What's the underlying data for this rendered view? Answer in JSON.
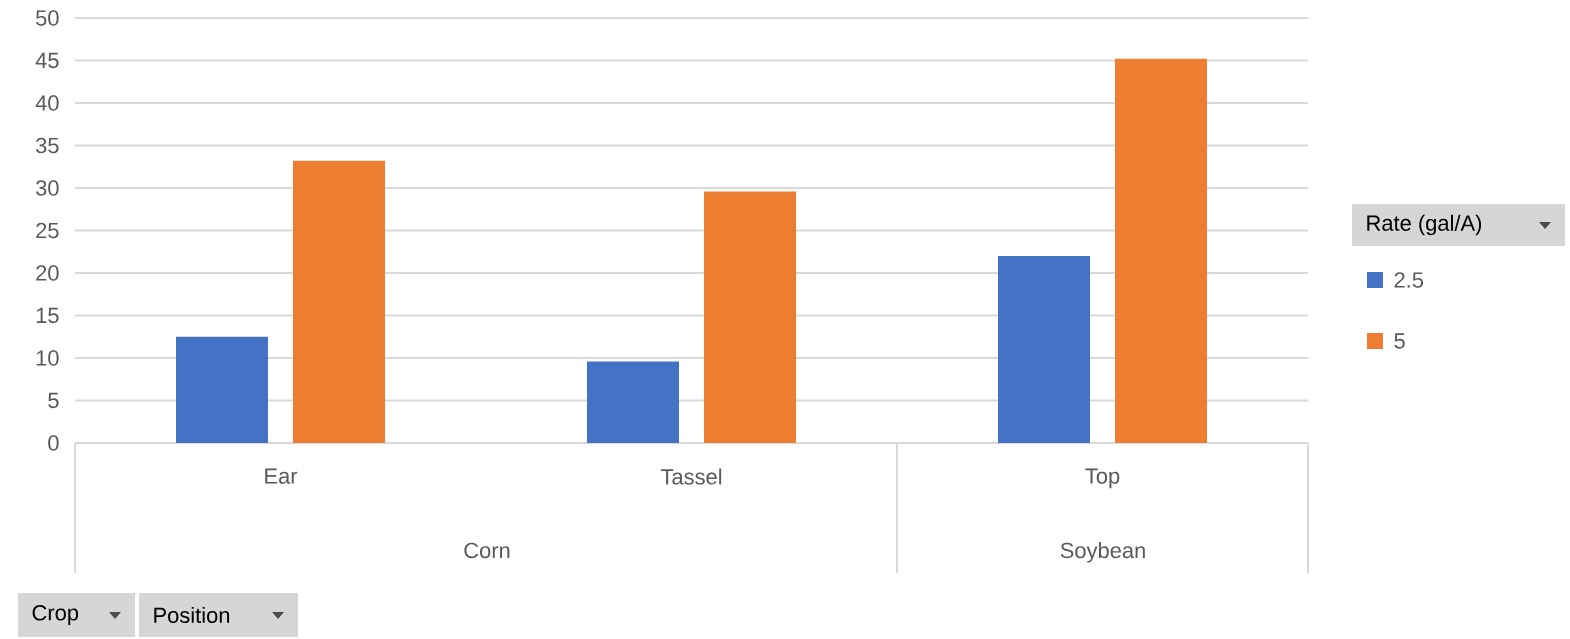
{
  "chart_data": {
    "type": "bar",
    "legend_title": "Rate (gal/A)",
    "categories": [
      "Ear",
      "Tassel",
      "Top"
    ],
    "series": [
      {
        "name": "2.5",
        "color": "#4472c4",
        "values": [
          12.5,
          9.6,
          22.0
        ]
      },
      {
        "name": "5",
        "color": "#ed7d31",
        "values": [
          33.2,
          29.6,
          45.2
        ]
      }
    ],
    "annotations": [
      "Corn",
      "Soybean",
      "Crop",
      "Position"
    ],
    "ylim": [
      0,
      50
    ],
    "yticks": [
      0,
      5,
      10,
      15,
      20,
      25,
      30,
      35,
      40,
      45,
      50
    ],
    "grid": "y",
    "legend": "right"
  }
}
